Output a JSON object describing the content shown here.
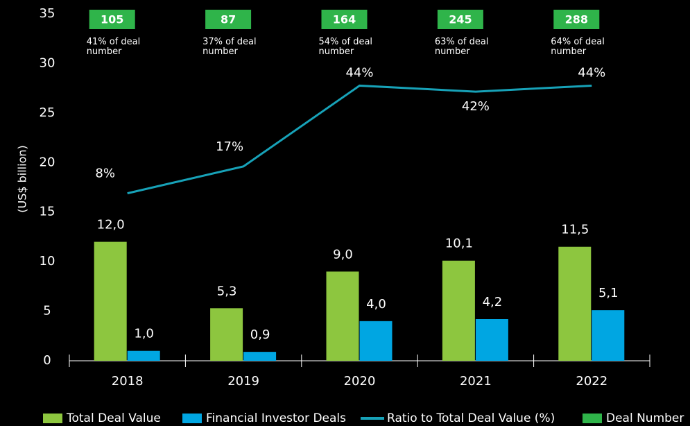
{
  "chart_data": {
    "type": "bar",
    "y_label": "(US$ billion)",
    "categories": [
      "2018",
      "2019",
      "2020",
      "2021",
      "2022"
    ],
    "ylim": [
      0,
      35
    ],
    "yticks": [
      0,
      5,
      10,
      15,
      20,
      25,
      30,
      35
    ],
    "y2lim": [
      -48,
      68
    ],
    "series": [
      {
        "name": "Total Deal Value",
        "type": "bar",
        "color": "#8dc63f",
        "values": [
          12.0,
          5.3,
          9.0,
          10.1,
          11.5
        ],
        "value_labels": [
          "12,0",
          "5,3",
          "9,0",
          "10,1",
          "11,5"
        ]
      },
      {
        "name": "Financial Investor Deals",
        "type": "bar",
        "color": "#00a6e2",
        "values": [
          1.0,
          0.9,
          4.0,
          4.2,
          5.1
        ],
        "value_labels": [
          "1,0",
          "0,9",
          "4,0",
          "4,2",
          "5,1"
        ]
      },
      {
        "name": "Ratio to Total Deal Value (%)",
        "type": "line",
        "axis": "y2",
        "color": "#17a2b8",
        "values": [
          8,
          17,
          44,
          42,
          44
        ],
        "value_labels": [
          "8%",
          "17%",
          "44%",
          "42%",
          "44%"
        ]
      }
    ],
    "deal_number": {
      "name": "Deal Number",
      "color": "#2fb44a",
      "values": [
        105,
        87,
        164,
        245,
        288
      ],
      "notes": [
        "41% of deal number",
        "37% of deal number",
        "54% of deal number",
        "63% of deal number",
        "64% of deal number"
      ]
    }
  }
}
